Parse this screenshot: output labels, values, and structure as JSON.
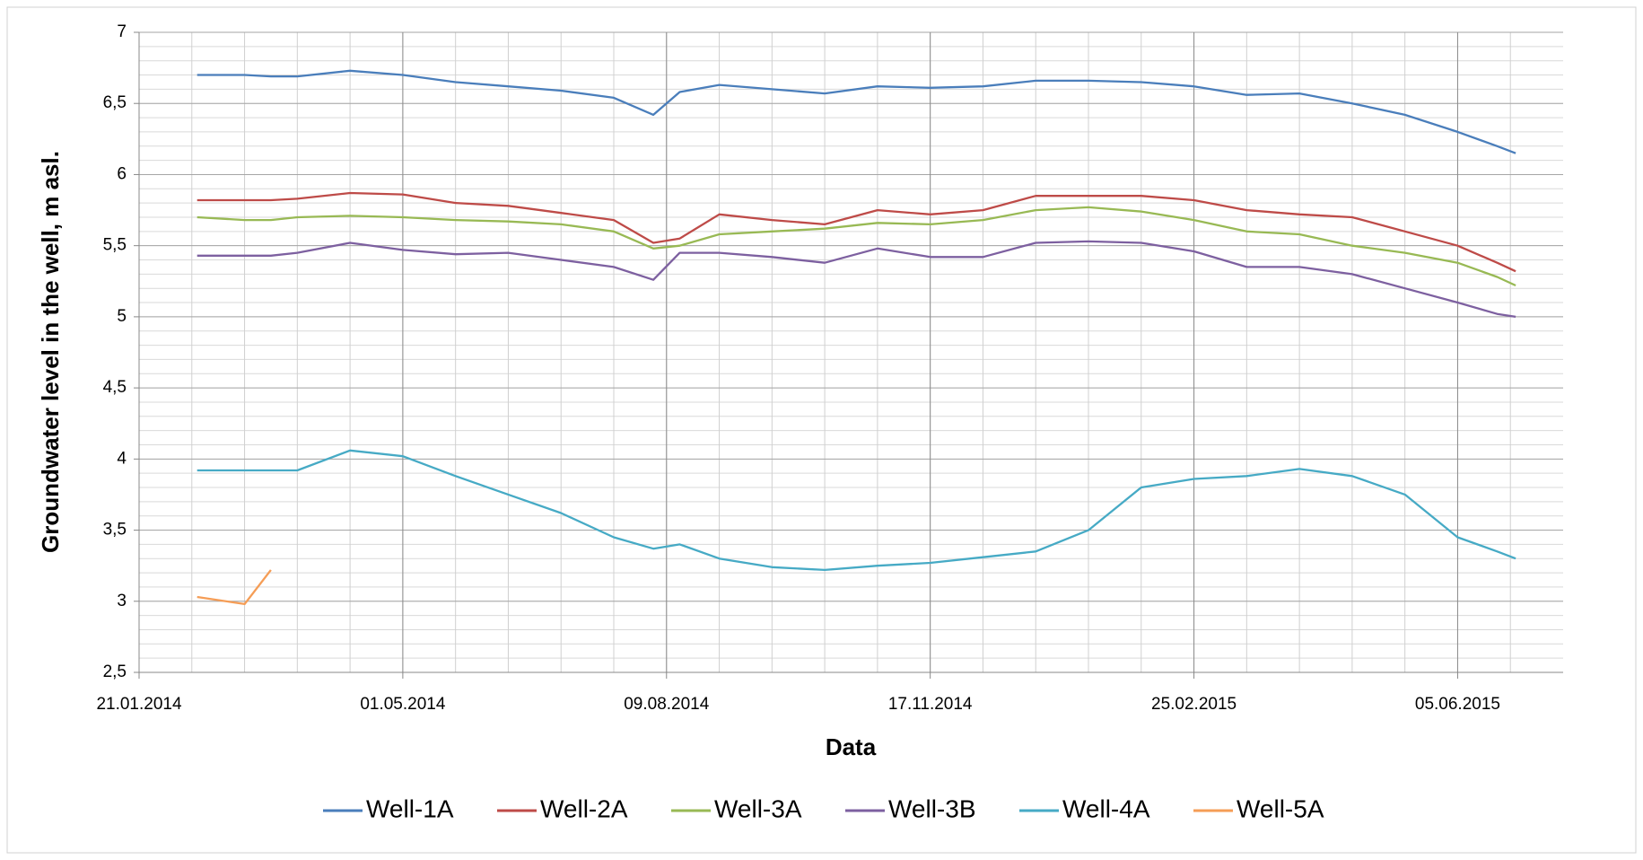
{
  "chart_data": {
    "type": "line",
    "xlabel": "Data",
    "ylabel": "Groundwater level in the well, m asl.",
    "x": [
      "2014-02-12",
      "2014-03-02",
      "2014-03-12",
      "2014-03-22",
      "2014-04-11",
      "2014-05-01",
      "2014-05-21",
      "2014-06-10",
      "2014-06-30",
      "2014-07-20",
      "2014-08-04",
      "2014-08-14",
      "2014-08-29",
      "2014-09-18",
      "2014-10-08",
      "2014-10-28",
      "2014-11-17",
      "2014-12-07",
      "2014-12-27",
      "2015-01-16",
      "2015-02-05",
      "2015-02-25",
      "2015-03-17",
      "2015-04-06",
      "2015-04-26",
      "2015-05-16",
      "2015-06-05",
      "2015-06-20",
      "2015-06-27"
    ],
    "series": [
      {
        "name": "Well-1A",
        "color": "#4a7ebb",
        "values": [
          6.7,
          6.7,
          6.69,
          6.69,
          6.73,
          6.7,
          6.65,
          6.62,
          6.59,
          6.54,
          6.42,
          6.58,
          6.63,
          6.6,
          6.57,
          6.62,
          6.61,
          6.62,
          6.66,
          6.66,
          6.65,
          6.62,
          6.56,
          6.57,
          6.5,
          6.42,
          6.3,
          6.2,
          6.15
        ]
      },
      {
        "name": "Well-2A",
        "color": "#be4b48",
        "values": [
          5.82,
          5.82,
          5.82,
          5.83,
          5.87,
          5.86,
          5.8,
          5.78,
          5.73,
          5.68,
          5.52,
          5.55,
          5.72,
          5.68,
          5.65,
          5.75,
          5.72,
          5.75,
          5.85,
          5.85,
          5.85,
          5.82,
          5.75,
          5.72,
          5.7,
          5.6,
          5.5,
          5.38,
          5.32
        ]
      },
      {
        "name": "Well-3A",
        "color": "#98b954",
        "values": [
          5.7,
          5.68,
          5.68,
          5.7,
          5.71,
          5.7,
          5.68,
          5.67,
          5.65,
          5.6,
          5.48,
          5.5,
          5.58,
          5.6,
          5.62,
          5.66,
          5.65,
          5.68,
          5.75,
          5.77,
          5.74,
          5.68,
          5.6,
          5.58,
          5.5,
          5.45,
          5.38,
          5.28,
          5.22
        ]
      },
      {
        "name": "Well-3B",
        "color": "#7d60a0",
        "values": [
          5.43,
          5.43,
          5.43,
          5.45,
          5.52,
          5.47,
          5.44,
          5.45,
          5.4,
          5.35,
          5.26,
          5.45,
          5.45,
          5.42,
          5.38,
          5.48,
          5.42,
          5.42,
          5.52,
          5.53,
          5.52,
          5.46,
          5.35,
          5.35,
          5.3,
          5.2,
          5.1,
          5.02,
          5.0
        ]
      },
      {
        "name": "Well-4A",
        "color": "#46aac5",
        "values": [
          3.92,
          3.92,
          3.92,
          3.92,
          4.06,
          4.02,
          3.88,
          3.75,
          3.62,
          3.45,
          3.37,
          3.4,
          3.3,
          3.24,
          3.22,
          3.25,
          3.27,
          3.31,
          3.35,
          3.5,
          3.8,
          3.86,
          3.88,
          3.93,
          3.88,
          3.75,
          3.45,
          3.35,
          3.3
        ]
      },
      {
        "name": "Well-5A",
        "color": "#f59d56",
        "values": [
          3.03,
          2.98,
          3.22,
          null,
          null,
          null,
          null,
          null,
          null,
          null,
          null,
          null,
          null,
          null,
          null,
          null,
          null,
          null,
          null,
          null,
          null,
          null,
          null,
          null,
          null,
          null,
          null,
          null,
          null
        ]
      }
    ],
    "xlim": [
      "2014-01-21",
      "2015-07-15"
    ],
    "xticks": [
      {
        "value": "2014-01-21",
        "label": "21.01.2014"
      },
      {
        "value": "2014-05-01",
        "label": "01.05.2014"
      },
      {
        "value": "2014-08-09",
        "label": "09.08.2014"
      },
      {
        "value": "2014-11-17",
        "label": "17.11.2014"
      },
      {
        "value": "2015-02-25",
        "label": "25.02.2015"
      },
      {
        "value": "2015-06-05",
        "label": "05.06.2015"
      }
    ],
    "ylim": [
      2.5,
      7
    ],
    "yticks": [
      {
        "value": 2.5,
        "label": "2,5"
      },
      3,
      {
        "value": 3.5,
        "label": "3,5"
      },
      4,
      {
        "value": 4.5,
        "label": "4,5"
      },
      5,
      {
        "value": 5.5,
        "label": "5,5"
      },
      6,
      {
        "value": 6.5,
        "label": "6,5"
      },
      7
    ],
    "grid": true,
    "xminor_days": 20,
    "yminor": 0.1,
    "legend": "bottom"
  }
}
